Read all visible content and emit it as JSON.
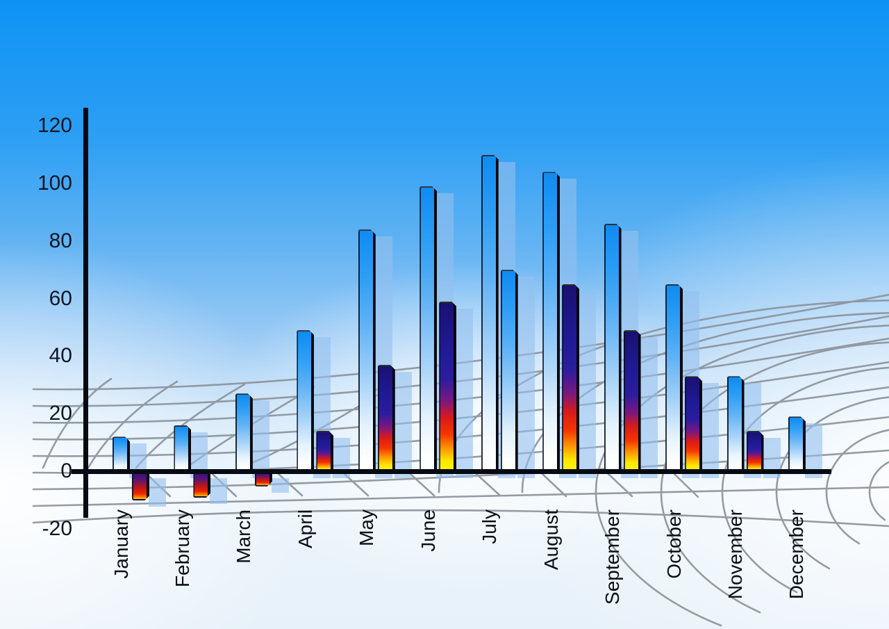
{
  "chart_data": {
    "type": "bar",
    "title": "",
    "categories": [
      "January",
      "February",
      "March",
      "April",
      "May",
      "June",
      "July",
      "August",
      "September",
      "October",
      "November",
      "December"
    ],
    "series": [
      {
        "name": "primary-blue-bars",
        "style": "blue-to-white-gradient",
        "values": [
          12,
          16,
          27,
          49,
          84,
          99,
          110,
          104,
          86,
          65,
          33,
          19
        ]
      },
      {
        "name": "secondary-rainbow-bars",
        "style": "navy-red-yellow-gradient",
        "values": [
          -10,
          -9,
          -5,
          14,
          37,
          59,
          70,
          65,
          49,
          33,
          14,
          null
        ],
        "blue_override_indices": [
          6
        ]
      }
    ],
    "y_axis": {
      "ticks": [
        120,
        100,
        80,
        60,
        40,
        20,
        0,
        -20
      ],
      "min": -20,
      "max": 120
    },
    "x_axis": {
      "label_rotation_deg": -90
    },
    "legend": "none",
    "background_grid": "gray perspective net on sky gradient"
  },
  "colors": {
    "sky_top": "#0d93f5",
    "sky_bottom": "#e7f1f9",
    "bar_blue_top": "#0f8bf2",
    "bar_navy": "#201a96",
    "bar_red": "#d81a1a",
    "bar_yellow": "#fff600",
    "bar_shadow": "#94bfee",
    "grid_line": "#8b9199",
    "axis": "#060a12",
    "label_text": "#0c1524"
  }
}
